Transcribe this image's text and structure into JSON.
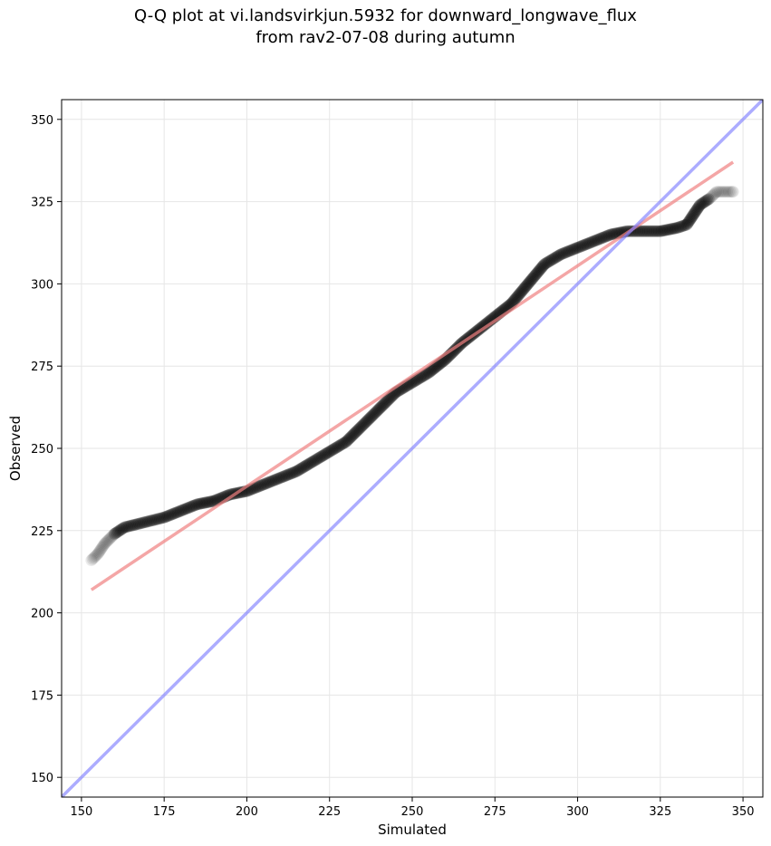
{
  "chart_data": {
    "type": "scatter",
    "title": "Q-Q plot at vi.landsvirkjun.5932 for downward_longwave_flux",
    "subtitle": "from rav2-07-08 during autumn",
    "xlabel": "Simulated",
    "ylabel": "Observed",
    "xlim": [
      144,
      356
    ],
    "ylim": [
      144,
      356
    ],
    "xticks": [
      150,
      175,
      200,
      225,
      250,
      275,
      300,
      325,
      350
    ],
    "yticks": [
      150,
      175,
      200,
      225,
      250,
      275,
      300,
      325,
      350
    ],
    "grid": true,
    "quantile_curve": [
      [
        153,
        216
      ],
      [
        155,
        218
      ],
      [
        157,
        221
      ],
      [
        160,
        224
      ],
      [
        163,
        226
      ],
      [
        167,
        227
      ],
      [
        171,
        228
      ],
      [
        175,
        229
      ],
      [
        180,
        231
      ],
      [
        185,
        233
      ],
      [
        190,
        234
      ],
      [
        195,
        236
      ],
      [
        200,
        237
      ],
      [
        205,
        239
      ],
      [
        210,
        241
      ],
      [
        215,
        243
      ],
      [
        220,
        246
      ],
      [
        225,
        249
      ],
      [
        230,
        252
      ],
      [
        235,
        257
      ],
      [
        240,
        262
      ],
      [
        245,
        267
      ],
      [
        250,
        270
      ],
      [
        255,
        273
      ],
      [
        260,
        277
      ],
      [
        265,
        282
      ],
      [
        270,
        286
      ],
      [
        275,
        290
      ],
      [
        280,
        294
      ],
      [
        285,
        300
      ],
      [
        290,
        306
      ],
      [
        295,
        309
      ],
      [
        300,
        311
      ],
      [
        305,
        313
      ],
      [
        310,
        315
      ],
      [
        315,
        316
      ],
      [
        320,
        316
      ],
      [
        325,
        316
      ],
      [
        330,
        317
      ],
      [
        333,
        318
      ],
      [
        335,
        321
      ],
      [
        337,
        324
      ],
      [
        340,
        326
      ],
      [
        342,
        328
      ],
      [
        347,
        328
      ]
    ],
    "fit_line": {
      "x": [
        153,
        347
      ],
      "y": [
        207,
        337
      ],
      "color": "#f08080"
    },
    "reference_line": {
      "x": [
        144,
        356
      ],
      "y": [
        144,
        356
      ],
      "color": "#8080ff"
    },
    "point_color": "#000000"
  }
}
